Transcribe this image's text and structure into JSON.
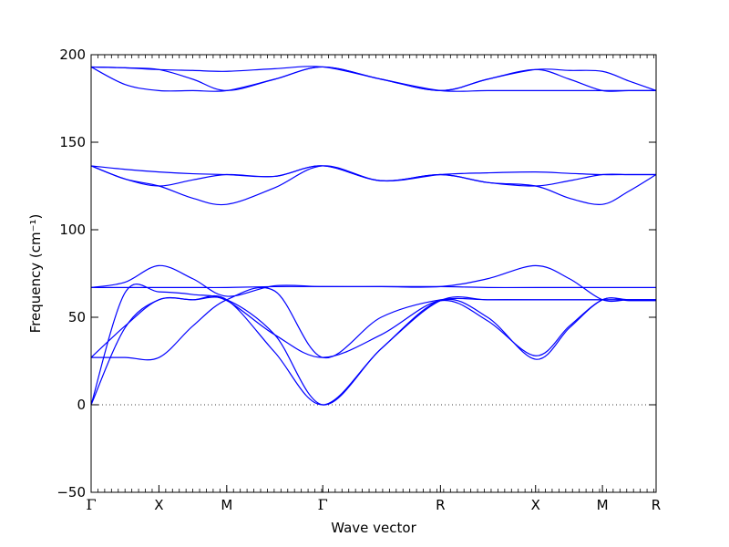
{
  "chart_data": {
    "type": "line",
    "title": "",
    "xlabel": "Wave vector",
    "ylabel": "Frequency (cm⁻¹)",
    "ylim": [
      -50,
      200
    ],
    "yticks": [
      -50,
      0,
      50,
      100,
      150,
      200
    ],
    "ytick_labels": [
      "−50",
      "0",
      "50",
      "100",
      "150",
      "200"
    ],
    "xlim": [
      0,
      6.0
    ],
    "high_symmetry_points": [
      {
        "label": "Γ",
        "x": 0.0
      },
      {
        "label": "X",
        "x": 0.72
      },
      {
        "label": "M",
        "x": 1.44
      },
      {
        "label": "Γ",
        "x": 2.46
      },
      {
        "label": "R",
        "x": 3.71
      },
      {
        "label": "X",
        "x": 4.72
      },
      {
        "label": "M",
        "x": 5.43
      },
      {
        "label": "R",
        "x": 6.0
      }
    ],
    "zero_line": {
      "y": 0,
      "style": "dotted"
    },
    "line_color": "#0000ff",
    "grid": false,
    "series": [
      {
        "x": [
          0,
          0.36,
          0.72,
          1.08,
          1.44,
          1.95,
          2.46,
          3.08,
          3.71,
          4.21,
          4.72,
          5.08,
          5.43,
          5.71,
          6.0
        ],
        "values": [
          193,
          192.5,
          191.5,
          186,
          179.5,
          186,
          193,
          186,
          179.5,
          186,
          191.5,
          186,
          179.5,
          179.5,
          179.5
        ]
      },
      {
        "x": [
          0,
          0.36,
          0.72,
          1.08,
          1.44,
          1.95,
          2.46,
          3.08,
          3.71,
          4.21,
          4.72,
          5.08,
          5.43,
          5.71,
          6.0
        ],
        "values": [
          193,
          183,
          179.5,
          179.5,
          179.5,
          186,
          193,
          186,
          179.5,
          179.5,
          179.5,
          179.5,
          179.5,
          179.5,
          179.5
        ]
      },
      {
        "x": [
          0,
          0.36,
          0.72,
          1.08,
          1.44,
          1.95,
          2.46,
          3.08,
          3.71,
          4.21,
          4.72,
          5.08,
          5.43,
          5.71,
          6.0
        ],
        "values": [
          193,
          192.5,
          191.5,
          191,
          190.5,
          192,
          193,
          186,
          179.5,
          186,
          191.5,
          191,
          190.5,
          185,
          179.5
        ]
      },
      {
        "x": [
          0,
          0.36,
          0.72,
          1.08,
          1.44,
          1.95,
          2.46,
          3.08,
          3.71,
          4.21,
          4.72,
          5.08,
          5.43,
          5.71,
          6.0
        ],
        "values": [
          136.5,
          134.5,
          133,
          132,
          131.5,
          130.5,
          136.5,
          128,
          131.5,
          132.5,
          133,
          132.2,
          131.5,
          131.5,
          131.5
        ]
      },
      {
        "x": [
          0,
          0.36,
          0.72,
          1.08,
          1.44,
          1.95,
          2.46,
          3.08,
          3.71,
          4.21,
          4.72,
          5.08,
          5.43,
          5.71,
          6.0
        ],
        "values": [
          136.5,
          129,
          125,
          128.5,
          131.5,
          130.5,
          136.5,
          128,
          131.5,
          127,
          125,
          128,
          131.5,
          131.5,
          131.5
        ]
      },
      {
        "x": [
          0,
          0.36,
          0.72,
          1.08,
          1.44,
          1.95,
          2.46,
          3.08,
          3.71,
          4.21,
          4.72,
          5.08,
          5.43,
          5.71,
          6.0
        ],
        "values": [
          136.5,
          129,
          125,
          118,
          114.5,
          124,
          136.5,
          128,
          131.5,
          127,
          125,
          118,
          114.5,
          122,
          131.5
        ]
      },
      {
        "x": [
          0,
          0.36,
          0.72,
          1.08,
          1.44,
          1.95,
          2.46,
          3.08,
          3.71,
          4.21,
          4.72,
          5.08,
          5.43,
          5.71,
          6.0
        ],
        "values": [
          67,
          70,
          79.5,
          72,
          62,
          68,
          67.5,
          67.5,
          67.5,
          72,
          79.5,
          72,
          60,
          60,
          60
        ]
      },
      {
        "x": [
          0,
          0.36,
          0.72,
          1.08,
          1.44,
          1.95,
          2.46,
          3.08,
          3.71,
          4.21,
          4.72,
          5.08,
          5.43,
          5.71,
          6.0
        ],
        "values": [
          67,
          67,
          67,
          67,
          67,
          67.5,
          67.5,
          67.5,
          67.5,
          67,
          67,
          67,
          67,
          67,
          67
        ]
      },
      {
        "x": [
          0,
          0.36,
          0.72,
          1.08,
          1.44,
          1.95,
          2.46,
          3.08,
          3.71,
          4.21,
          4.72,
          5.08,
          5.43,
          5.71,
          6.0
        ],
        "values": [
          0,
          64,
          64.5,
          63,
          59.5,
          40,
          27,
          40,
          59.5,
          48,
          28,
          45,
          60,
          60,
          60
        ]
      },
      {
        "x": [
          0,
          0.36,
          0.72,
          1.08,
          1.44,
          1.95,
          2.46,
          3.08,
          3.71,
          4.21,
          4.72,
          5.08,
          5.43,
          5.71,
          6.0
        ],
        "values": [
          0,
          44,
          60,
          60,
          60,
          40,
          0,
          32,
          59.5,
          50,
          26,
          44,
          60,
          59.5,
          59.5
        ]
      },
      {
        "x": [
          0,
          0.36,
          0.72,
          1.08,
          1.44,
          1.95,
          2.46,
          3.08,
          3.71,
          4.21,
          4.72,
          5.08,
          5.43,
          5.71,
          6.0
        ],
        "values": [
          27,
          27,
          27,
          45,
          60,
          65,
          27,
          50,
          60,
          60,
          60,
          60,
          60,
          60,
          60
        ]
      },
      {
        "x": [
          0,
          0.36,
          0.72,
          1.08,
          1.44,
          1.95,
          2.46,
          3.08,
          3.71,
          4.21,
          4.72,
          5.08,
          5.43,
          5.71,
          6.0
        ],
        "values": [
          27,
          45,
          60,
          60,
          60,
          30,
          0,
          32,
          59.5,
          60,
          60,
          60,
          60,
          60,
          60
        ]
      }
    ]
  }
}
